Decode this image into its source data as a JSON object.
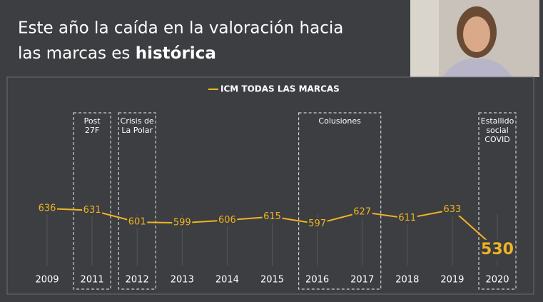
{
  "title_lines": [
    "Este año la caída en la valoración hacia",
    "las marcas es"
  ],
  "title_emphasis": "histórica",
  "chart_data": {
    "type": "line",
    "categories": [
      "2009",
      "2011",
      "2012",
      "2013",
      "2014",
      "2015",
      "2016",
      "2017",
      "2018",
      "2019",
      "2020"
    ],
    "series": [
      {
        "name": "ICM TODAS LAS MARCAS",
        "color": "#f0b323",
        "values": [
          636,
          631,
          601,
          599,
          606,
          615,
          597,
          627,
          611,
          633,
          530
        ]
      }
    ],
    "annotations": [
      {
        "lines": [
          "Post",
          "27F"
        ]
      },
      {
        "lines": [
          "Crisis de",
          "La Polar"
        ]
      },
      {
        "lines": [
          "Colusiones"
        ]
      },
      {
        "lines": [
          "Estallido",
          "social",
          "COVID"
        ]
      }
    ]
  }
}
